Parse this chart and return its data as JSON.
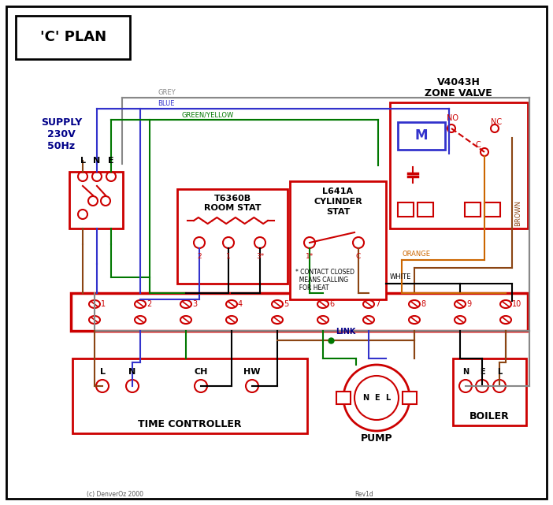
{
  "title": "'C' PLAN",
  "bg_color": "#ffffff",
  "red": "#cc0000",
  "blue": "#3333cc",
  "green": "#007700",
  "grey": "#888888",
  "brown": "#8B4513",
  "orange": "#cc6600",
  "black": "#000000",
  "supply_text": [
    "SUPPLY",
    "230V",
    "50Hz"
  ],
  "zone_valve_title": [
    "V4043H",
    "ZONE VALVE"
  ],
  "room_stat_title": [
    "T6360B",
    "ROOM STAT"
  ],
  "cyl_stat_title": [
    "L641A",
    "CYLINDER",
    "STAT"
  ],
  "time_controller_title": "TIME CONTROLLER",
  "pump_title": "PUMP",
  "boiler_title": "BOILER",
  "terminal_labels": [
    "1",
    "2",
    "3",
    "4",
    "5",
    "6",
    "7",
    "8",
    "9",
    "10"
  ],
  "link_label": "LINK",
  "copyright": "(c) DenverOz 2000",
  "rev": "Rev1d",
  "lw": 1.5
}
